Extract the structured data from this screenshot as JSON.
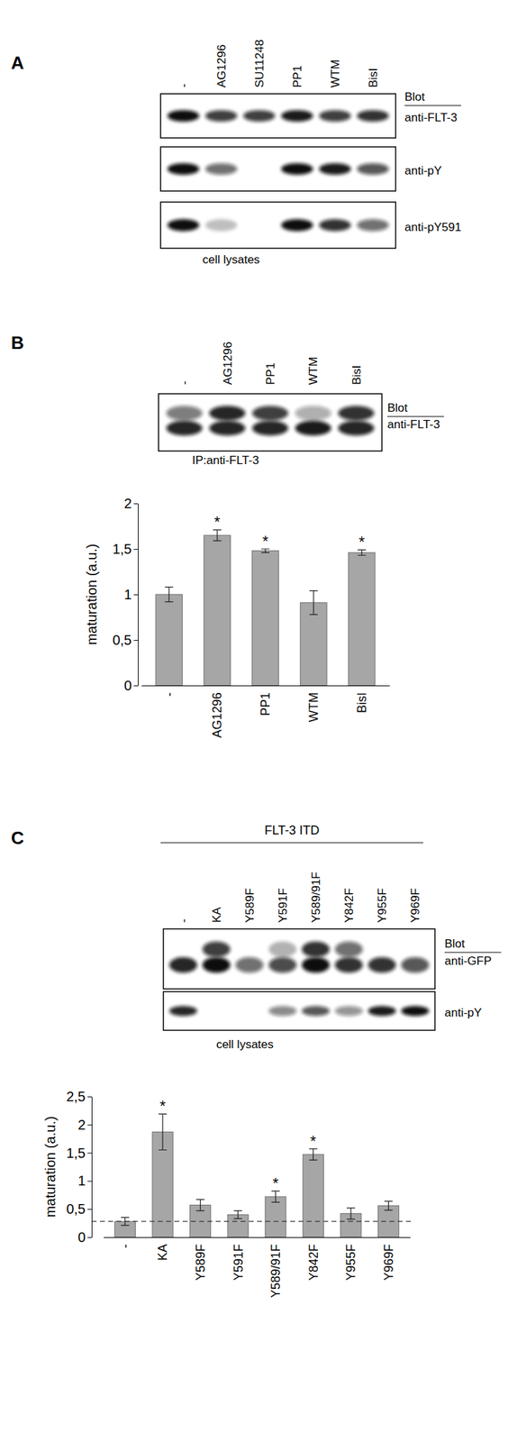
{
  "panel_labels": [
    "A",
    "B",
    "C"
  ],
  "blots": [
    {
      "lanes": [
        "-",
        "AG1296",
        "SU11248",
        "PP1",
        "WTM",
        "BisI"
      ],
      "header": "Blot",
      "rows": [
        "anti-FLT-3",
        "anti-pY",
        "anti-pY591"
      ],
      "caption": "cell lysates"
    },
    {
      "lanes": [
        "-",
        "AG1296",
        "PP1",
        "WTM",
        "BisI"
      ],
      "header": "Blot",
      "rows": [
        "anti-FLT-3"
      ],
      "caption": "IP:anti-FLT-3"
    },
    {
      "group": "FLT-3 ITD",
      "lanes": [
        "-",
        "KA",
        "Y589F",
        "Y591F",
        "Y589/91F",
        "Y842F",
        "Y955F",
        "Y969F"
      ],
      "header": "Blot",
      "rows": [
        "anti-GFP",
        "anti-pY"
      ],
      "caption": "cell lysates"
    }
  ],
  "chart_data": [
    {
      "type": "bar",
      "y_label": "maturation (a.u.)",
      "categories": [
        "-",
        "AG1296",
        "PP1",
        "WTM",
        "BisI"
      ],
      "values": [
        1.0,
        1.65,
        1.48,
        0.91,
        1.46
      ],
      "errors": [
        0.08,
        0.06,
        0.02,
        0.13,
        0.03
      ],
      "color": "#a6a6a6",
      "ylim": [
        0,
        2
      ],
      "yticks": [
        0,
        {
          "value": 0.5,
          "label": "0,5"
        },
        1,
        {
          "value": 1.5,
          "label": "1,5"
        },
        2
      ],
      "annotations": [
        {
          "category": "AG1296",
          "text": "*"
        },
        {
          "category": "PP1",
          "text": "*"
        },
        {
          "category": "BisI",
          "text": "*"
        }
      ]
    },
    {
      "type": "bar",
      "y_label": "maturation (a.u.)",
      "categories": [
        "-",
        "KA",
        "Y589F",
        "Y591F",
        "Y589/91F",
        "Y842F",
        "Y955F",
        "Y969F"
      ],
      "values": [
        0.28,
        1.87,
        0.57,
        0.4,
        0.72,
        1.47,
        0.42,
        0.56
      ],
      "errors": [
        0.07,
        0.32,
        0.1,
        0.07,
        0.1,
        0.1,
        0.1,
        0.08
      ],
      "color": "#a6a6a6",
      "line_style": "dashed",
      "ylim": [
        0,
        2.5
      ],
      "yticks": [
        0,
        {
          "value": 0.5,
          "label": "0,5"
        },
        1,
        {
          "value": 1.5,
          "label": "1,5"
        },
        2,
        {
          "value": 2.5,
          "label": "2,5"
        }
      ],
      "annotations": [
        {
          "category": "KA",
          "text": "*"
        },
        {
          "category": "Y589/91F",
          "text": "*"
        },
        {
          "category": "Y842F",
          "text": "*"
        }
      ]
    }
  ]
}
